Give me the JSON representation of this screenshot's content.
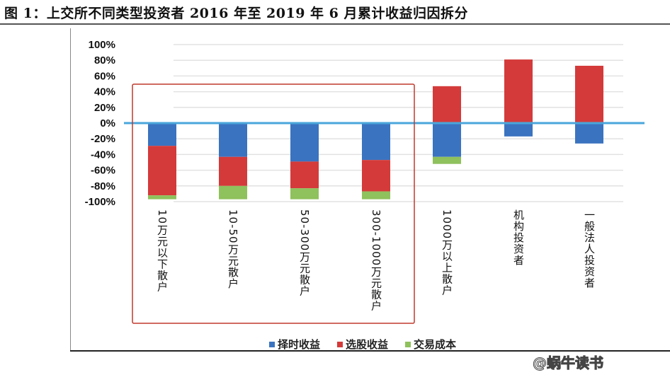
{
  "title": "图 1：上交所不同类型投资者 2016 年至 2019 年 6 月累计收益归因拆分",
  "watermark": "@蜗牛读书",
  "colors": {
    "timing": "#3a73c0",
    "selection": "#d43a3a",
    "cost": "#8fc15c",
    "zero_line": "#4aa6db",
    "highlight_box": "#c0392b"
  },
  "chart_data": {
    "type": "bar",
    "stacked": true,
    "categories": [
      "10万元以下散户",
      "10-50万元散户",
      "50-300万元散户",
      "300-1000万元散户",
      "1000万以上散户",
      "机构投资者",
      "一般法人投资者"
    ],
    "series": [
      {
        "name": "择时收益",
        "values": [
          -29,
          -43,
          -49,
          -47,
          -43,
          -17,
          -26
        ]
      },
      {
        "name": "选股收益",
        "values": [
          -63,
          -37,
          -34,
          -40,
          47,
          81,
          73
        ]
      },
      {
        "name": "交易成本",
        "values": [
          -5,
          -17,
          -14,
          -10,
          -9,
          0,
          0
        ]
      }
    ],
    "ylim": [
      -100,
      100
    ],
    "yticks": [
      "100%",
      "80%",
      "60%",
      "40%",
      "20%",
      "0%",
      "-20%",
      "-40%",
      "-60%",
      "-80%",
      "-100%"
    ],
    "grid": true,
    "legend": "bottom",
    "highlighted_categories": [
      "10万元以下散户",
      "10-50万元散户",
      "50-300万元散户",
      "300-1000万元散户"
    ]
  }
}
